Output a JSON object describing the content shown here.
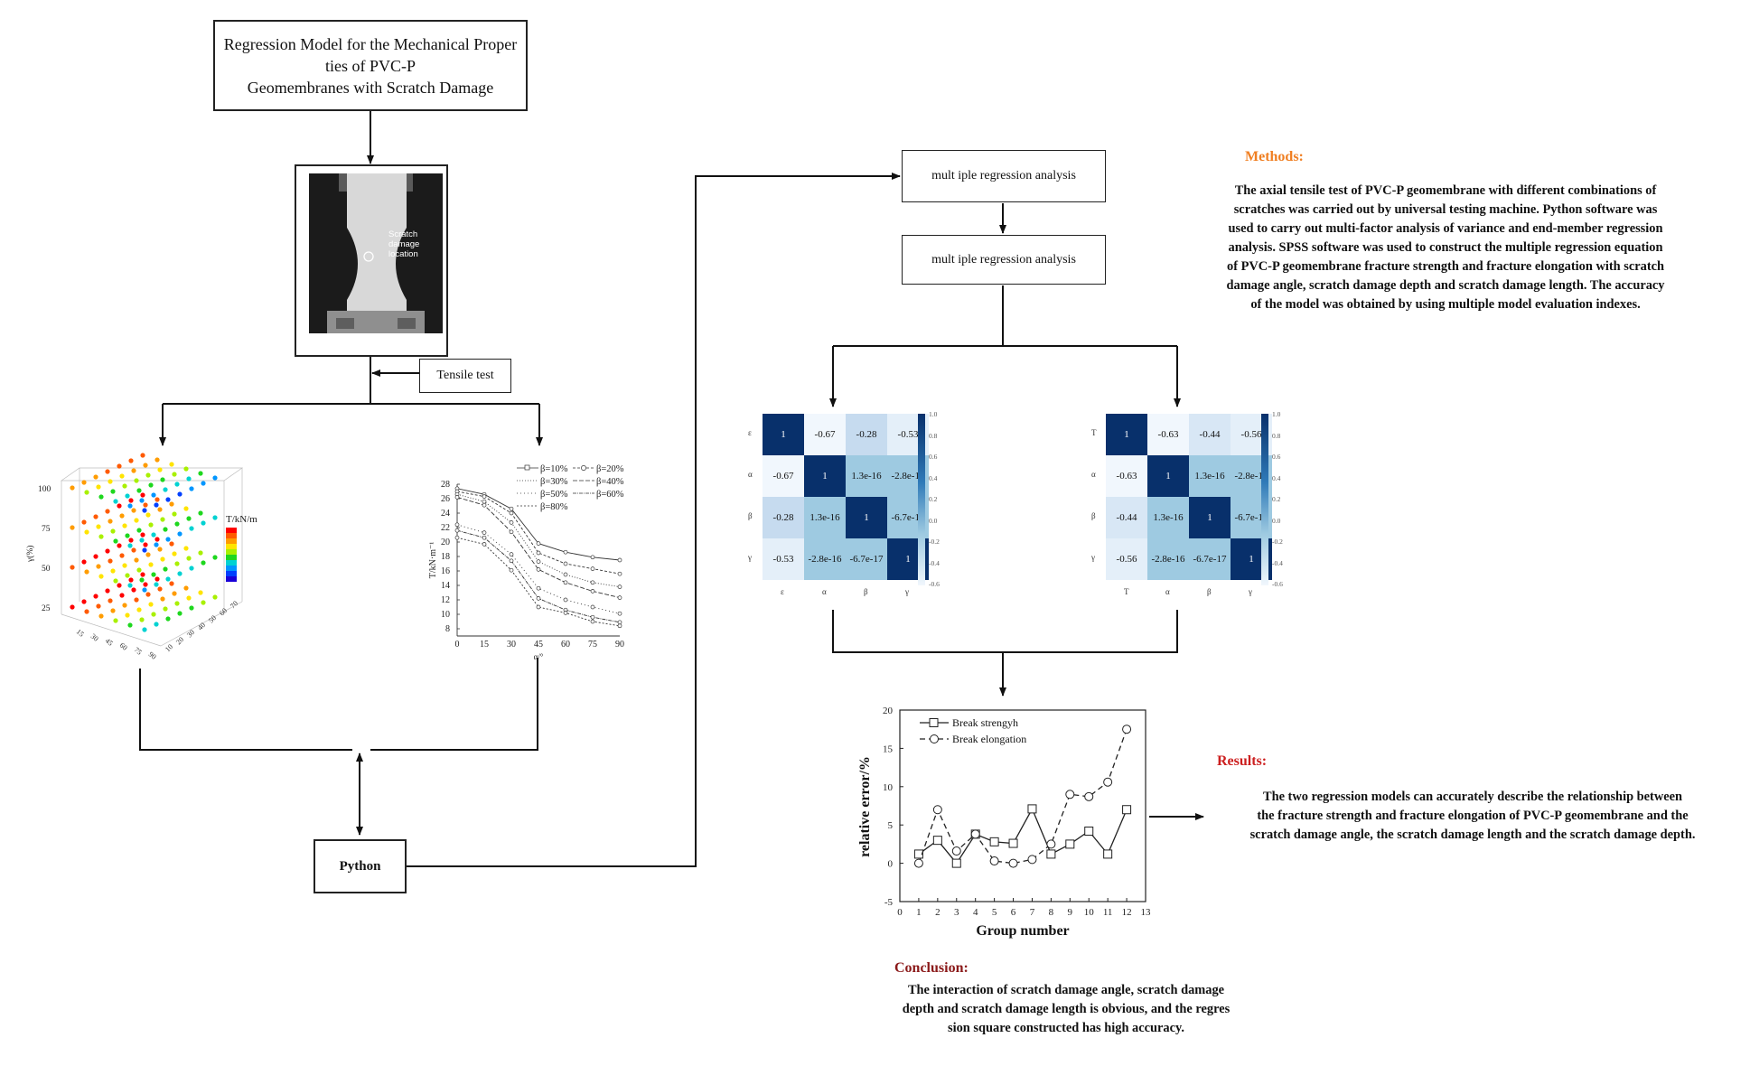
{
  "title": {
    "lines": [
      "Regression Model for the Mechanical Proper",
      "ties of PVC-P",
      "Geomembranes with Scratch Damage"
    ]
  },
  "photo": {
    "annotation_lines": [
      "Scratch",
      "damage",
      "location"
    ]
  },
  "tensile_label": "Tensile test",
  "python_label": "Python",
  "mra_box1": "mult iple regression analysis",
  "mra_box2": "mult iple regression analysis",
  "scatter3d": {
    "legend_title": "T/kN/m",
    "z_ticks": [
      "100",
      "75",
      "50",
      "25"
    ],
    "z_label": "γ(%)",
    "x_ticks": [
      "15",
      "30",
      "45",
      "60",
      "75",
      "90"
    ],
    "y_ticks": [
      "10",
      "20",
      "30",
      "40",
      "50",
      "60",
      "70"
    ]
  },
  "line_chart": {
    "y_ticks": [
      "28",
      "26",
      "24",
      "22",
      "20",
      "18",
      "16",
      "14",
      "12",
      "10",
      "8"
    ],
    "x_ticks": [
      "0",
      "15",
      "30",
      "45",
      "60",
      "75",
      "90"
    ],
    "y_label": "T/kN·m⁻¹",
    "x_label": "α/°",
    "legend": [
      "β=10%",
      "β=20%",
      "β=30%",
      "β=40%",
      "β=50%",
      "β=60%",
      "β=80%"
    ]
  },
  "heatmaps": [
    {
      "row_labels": [
        "ε",
        "α",
        "β",
        "γ"
      ],
      "col_labels": [
        "ε",
        "α",
        "β",
        "γ"
      ],
      "values": [
        [
          "1",
          "-0.67",
          "-0.28",
          "-0.53"
        ],
        [
          "-0.67",
          "1",
          "1.3e-16",
          "-2.8e-16"
        ],
        [
          "-0.28",
          "1.3e-16",
          "1",
          "-6.7e-17"
        ],
        [
          "-0.53",
          "-2.8e-16",
          "-6.7e-17",
          "1"
        ]
      ]
    },
    {
      "row_labels": [
        "T",
        "α",
        "β",
        "γ"
      ],
      "col_labels": [
        "T",
        "α",
        "β",
        "γ"
      ],
      "values": [
        [
          "1",
          "-0.63",
          "-0.44",
          "-0.56"
        ],
        [
          "-0.63",
          "1",
          "1.3e-16",
          "-2.8e-16"
        ],
        [
          "-0.44",
          "1.3e-16",
          "1",
          "-6.7e-17"
        ],
        [
          "-0.56",
          "-2.8e-16",
          "-6.7e-17",
          "1"
        ]
      ]
    }
  ],
  "colorbar_ticks": [
    "1.0",
    "0.8",
    "0.6",
    "0.4",
    "0.2",
    "0.0",
    "-0.2",
    "-0.4",
    "-0.6"
  ],
  "chart_data": {
    "type": "line",
    "x": [
      1,
      2,
      3,
      4,
      5,
      6,
      7,
      8,
      9,
      10,
      11,
      12
    ],
    "series": [
      {
        "name": "Break strengyh",
        "values": [
          1.2,
          3.0,
          0.0,
          3.8,
          2.8,
          2.6,
          7.1,
          1.2,
          2.5,
          4.2,
          1.2,
          7.0
        ]
      },
      {
        "name": "Break elongation",
        "values": [
          0.0,
          7.0,
          1.6,
          3.8,
          0.3,
          0.0,
          0.5,
          2.5,
          9.0,
          8.7,
          10.6,
          17.5
        ]
      }
    ],
    "xlabel": "Group number",
    "ylabel": "relative error/%",
    "xlim": [
      0,
      13
    ],
    "ylim": [
      -5,
      20
    ],
    "x_ticks": [
      "0",
      "1",
      "2",
      "3",
      "4",
      "5",
      "6",
      "7",
      "8",
      "9",
      "10",
      "11",
      "12",
      "13"
    ],
    "y_ticks": [
      "20",
      "15",
      "10",
      "5",
      "0",
      "-5"
    ]
  },
  "methods": {
    "heading": "Methods:",
    "heading_color": "#f07f22",
    "body_lines": [
      "The axial tensile test of PVC-P geomembrane with different combinations of",
      "scratches was carried out by universal testing machine. Python software was",
      "used to carry out multi-factor analysis of variance and end-member regression",
      "analysis. SPSS software was used to construct the multiple regression equation",
      "of PVC-P geomembrane fracture strength and fracture elongation with scratch",
      "damage angle, scratch damage depth and scratch damage length. The accuracy",
      "of the model was obtained by using multiple model evaluation indexes."
    ]
  },
  "results": {
    "heading": "Results:",
    "heading_color": "#cc1f1f",
    "body_lines": [
      "The two regression models can accurately describe the relationship between",
      "the fracture strength and fracture elongation of PVC-P geomembrane and the",
      "scratch damage angle, the scratch damage length and the scratch damage depth."
    ]
  },
  "conclusion": {
    "heading": "Conclusion:",
    "heading_color": "#8b1a1a",
    "body_lines": [
      "The interaction of scratch damage angle, scratch damage",
      "depth and scratch damage length is obvious, and the regres",
      "sion square constructed has high accuracy."
    ]
  }
}
